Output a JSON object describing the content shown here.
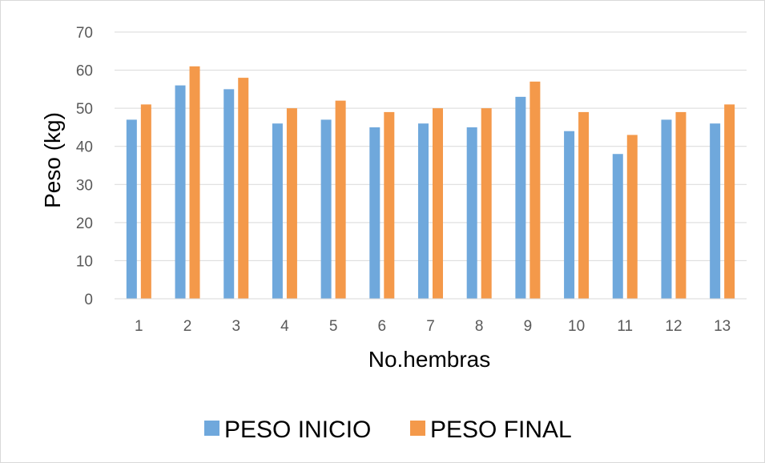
{
  "chart_data": {
    "type": "bar",
    "title": "",
    "xlabel": "No.hembras",
    "ylabel": "Peso (kg)",
    "ylim": [
      0,
      70
    ],
    "yticks": [
      0,
      10,
      20,
      30,
      40,
      50,
      60,
      70
    ],
    "grid": true,
    "legend_position": "bottom",
    "categories": [
      "1",
      "2",
      "3",
      "4",
      "5",
      "6",
      "7",
      "8",
      "9",
      "10",
      "11",
      "12",
      "13"
    ],
    "series": [
      {
        "name": "PESO INICIO",
        "color": "#6fa8dc",
        "values": [
          47,
          56,
          55,
          46,
          47,
          45,
          46,
          45,
          53,
          44,
          38,
          47,
          46
        ]
      },
      {
        "name": "PESO FINAL",
        "color": "#f4994a",
        "values": [
          51,
          61,
          58,
          50,
          52,
          49,
          50,
          50,
          57,
          49,
          43,
          49,
          51
        ]
      }
    ]
  }
}
